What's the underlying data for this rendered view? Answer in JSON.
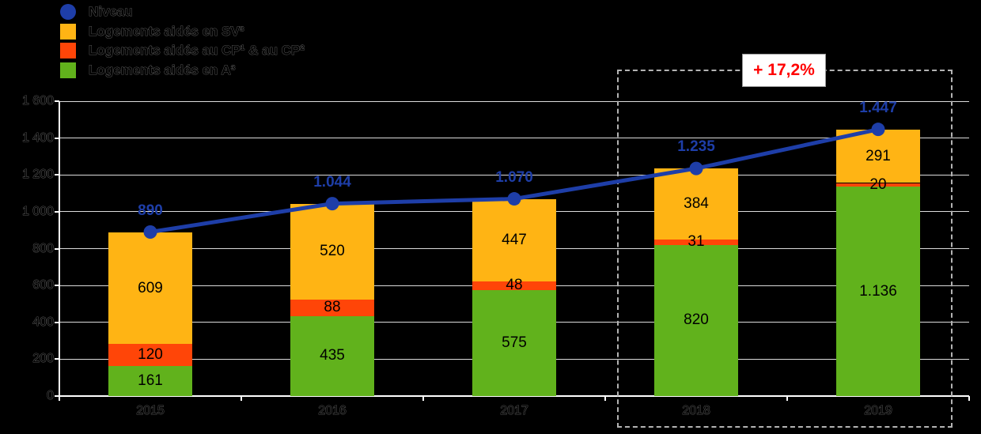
{
  "colors": {
    "background": "#000000",
    "grid": "#dcdcdc",
    "axis": "#ffffff",
    "line_blue": "#1e3ea8",
    "bar_yellow": "#ffb414",
    "bar_red": "#ff4508",
    "bar_green": "#61b21c",
    "growth_red": "#ff0000"
  },
  "legend": {
    "items": [
      {
        "label": "Niveau",
        "marker": "circle",
        "color": "#1e3ea8"
      },
      {
        "label": "Logements aidés en SV³",
        "marker": "square",
        "color": "#ffb414"
      },
      {
        "label": "Logements aidés au CP¹ & au CP²",
        "marker": "square",
        "color": "#ff4508"
      },
      {
        "label": "Logements aidés en A³",
        "marker": "square",
        "color": "#61b21c"
      }
    ]
  },
  "annotation": {
    "growth_label": "+ 17,2%"
  },
  "chart_data": {
    "type": "bar",
    "subtype": "stacked-bar-with-line",
    "categories": [
      "2015",
      "2016",
      "2017",
      "2018",
      "2019"
    ],
    "series": [
      {
        "name": "Logements aidés en A³",
        "color": "#61b21c",
        "values": [
          161,
          435,
          575,
          820,
          1136
        ],
        "labels": [
          "161",
          "435",
          "575",
          "820",
          "1.136"
        ]
      },
      {
        "name": "Logements aidés au CP¹ & au CP²",
        "color": "#ff4508",
        "values": [
          120,
          88,
          48,
          31,
          20
        ],
        "labels": [
          "120",
          "88",
          "48",
          "31",
          "20"
        ]
      },
      {
        "name": "Logements aidés en SV³",
        "color": "#ffb414",
        "values": [
          609,
          520,
          447,
          384,
          291
        ],
        "labels": [
          "609",
          "520",
          "447",
          "384",
          "291"
        ]
      }
    ],
    "line": {
      "name": "Niveau",
      "color": "#1e3ea8",
      "values": [
        890,
        1044,
        1070,
        1235,
        1447
      ],
      "labels": [
        "890",
        "1.044",
        "1.070",
        "1.235",
        "1.447"
      ]
    },
    "ylim": [
      0,
      1600
    ],
    "ytick_labels": [
      "0",
      "200",
      "400",
      "600",
      "800",
      "1 000",
      "1 200",
      "1 400",
      "1 600"
    ],
    "grid": true,
    "legend_position": "top-left",
    "highlight": {
      "categories": [
        "2018",
        "2019"
      ],
      "annotation": "+ 17,2%"
    }
  }
}
